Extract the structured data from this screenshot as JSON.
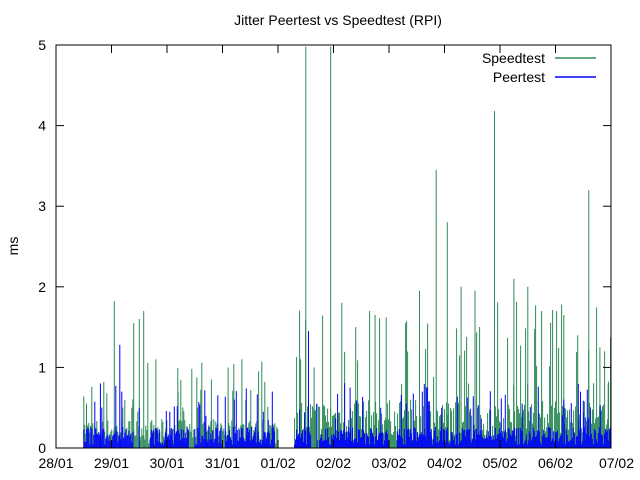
{
  "chart_data": {
    "type": "bar",
    "title": "Jitter Peertest vs Speedtest (RPI)",
    "xlabel": "",
    "ylabel": "ms",
    "ylim": [
      0,
      5
    ],
    "yticks": [
      "0",
      "1",
      "2",
      "3",
      "4",
      "5"
    ],
    "xticks": [
      "28/01",
      "29/01",
      "30/01",
      "31/01",
      "01/02",
      "02/02",
      "03/02",
      "04/02",
      "05/02",
      "06/02",
      "07/02"
    ],
    "legend": {
      "placement": "top-right"
    },
    "series": [
      {
        "name": "Speedtest",
        "color": "#2e8b57",
        "segments": [
          {
            "start_day": 0.5,
            "end_day": 4.0,
            "typical": 0.3
          },
          {
            "start_day": 4.3,
            "end_day": 10.0,
            "typical": 0.5
          }
        ],
        "spikes": [
          {
            "day": 0.55,
            "value": 0.55
          },
          {
            "day": 1.05,
            "value": 1.82
          },
          {
            "day": 1.4,
            "value": 1.55
          },
          {
            "day": 1.5,
            "value": 1.6
          },
          {
            "day": 1.58,
            "value": 1.7
          },
          {
            "day": 1.8,
            "value": 1.1
          },
          {
            "day": 2.2,
            "value": 0.7
          },
          {
            "day": 2.55,
            "value": 0.5
          },
          {
            "day": 2.8,
            "value": 0.85
          },
          {
            "day": 3.1,
            "value": 1.0
          },
          {
            "day": 3.35,
            "value": 1.1
          },
          {
            "day": 3.65,
            "value": 0.95
          },
          {
            "day": 4.5,
            "value": 4.98
          },
          {
            "day": 4.65,
            "value": 1.0
          },
          {
            "day": 4.95,
            "value": 4.98
          },
          {
            "day": 5.15,
            "value": 1.8
          },
          {
            "day": 5.4,
            "value": 1.5
          },
          {
            "day": 5.65,
            "value": 1.7
          },
          {
            "day": 5.75,
            "value": 1.65
          },
          {
            "day": 5.95,
            "value": 1.62
          },
          {
            "day": 6.3,
            "value": 1.55
          },
          {
            "day": 6.55,
            "value": 1.95
          },
          {
            "day": 6.85,
            "value": 3.45
          },
          {
            "day": 7.05,
            "value": 2.8
          },
          {
            "day": 7.3,
            "value": 2.0
          },
          {
            "day": 7.55,
            "value": 1.95
          },
          {
            "day": 7.9,
            "value": 4.18
          },
          {
            "day": 8.25,
            "value": 2.1
          },
          {
            "day": 8.5,
            "value": 2.0
          },
          {
            "day": 8.75,
            "value": 1.7
          },
          {
            "day": 9.15,
            "value": 1.65
          },
          {
            "day": 9.4,
            "value": 1.4
          },
          {
            "day": 9.6,
            "value": 3.2
          },
          {
            "day": 9.8,
            "value": 1.25
          },
          {
            "day": 9.95,
            "value": 0.8
          }
        ]
      },
      {
        "name": "Peertest",
        "color": "#0000ff",
        "segments": [
          {
            "start_day": 0.5,
            "end_day": 1.4,
            "typical": 0.22
          },
          {
            "start_day": 1.7,
            "end_day": 2.4,
            "typical": 0.22
          },
          {
            "start_day": 2.5,
            "end_day": 3.0,
            "typical": 0.22
          },
          {
            "start_day": 3.05,
            "end_day": 3.95,
            "typical": 0.22
          },
          {
            "start_day": 4.3,
            "end_day": 4.6,
            "typical": 0.22
          },
          {
            "start_day": 4.75,
            "end_day": 6.0,
            "typical": 0.22
          },
          {
            "start_day": 6.15,
            "end_day": 10.0,
            "typical": 0.22
          }
        ],
        "spikes": [
          {
            "day": 0.8,
            "value": 0.8
          },
          {
            "day": 1.15,
            "value": 1.28
          },
          {
            "day": 1.5,
            "value": 0.5
          },
          {
            "day": 2.05,
            "value": 0.45
          },
          {
            "day": 2.7,
            "value": 0.4
          },
          {
            "day": 4.55,
            "value": 1.45
          },
          {
            "day": 4.7,
            "value": 0.55
          },
          {
            "day": 5.3,
            "value": 0.75
          },
          {
            "day": 5.85,
            "value": 0.5
          },
          {
            "day": 6.6,
            "value": 0.7
          },
          {
            "day": 6.95,
            "value": 0.5
          },
          {
            "day": 7.6,
            "value": 0.5
          },
          {
            "day": 8.4,
            "value": 0.55
          },
          {
            "day": 9.15,
            "value": 0.6
          },
          {
            "day": 9.45,
            "value": 0.7
          }
        ]
      }
    ]
  }
}
